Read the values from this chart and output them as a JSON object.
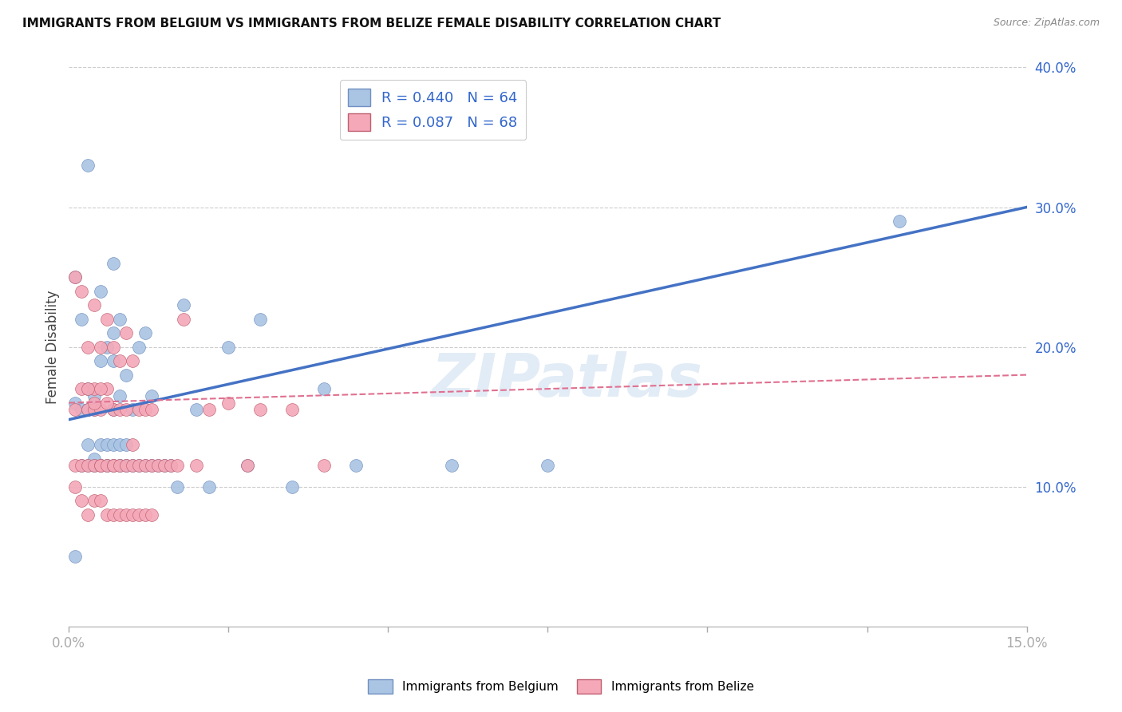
{
  "title": "IMMIGRANTS FROM BELGIUM VS IMMIGRANTS FROM BELIZE FEMALE DISABILITY CORRELATION CHART",
  "source": "Source: ZipAtlas.com",
  "ylabel": "Female Disability",
  "xlim": [
    0.0,
    0.15
  ],
  "ylim": [
    0.0,
    0.4
  ],
  "belgium_color": "#aac4e4",
  "belize_color": "#f4a8b8",
  "belgium_R": 0.44,
  "belgium_N": 64,
  "belize_R": 0.087,
  "belize_N": 68,
  "belgium_line_color": "#4472c4",
  "belize_line_color": "#e07090",
  "watermark": "ZIPatlas",
  "background_color": "#ffffff",
  "grid_color": "#cccccc",
  "belgium_x": [
    0.001,
    0.001,
    0.002,
    0.002,
    0.002,
    0.003,
    0.003,
    0.003,
    0.003,
    0.004,
    0.004,
    0.004,
    0.004,
    0.004,
    0.005,
    0.005,
    0.005,
    0.005,
    0.006,
    0.006,
    0.006,
    0.006,
    0.007,
    0.007,
    0.007,
    0.007,
    0.007,
    0.008,
    0.008,
    0.008,
    0.008,
    0.008,
    0.009,
    0.009,
    0.009,
    0.01,
    0.01,
    0.011,
    0.011,
    0.012,
    0.012,
    0.013,
    0.013,
    0.014,
    0.015,
    0.016,
    0.017,
    0.018,
    0.02,
    0.022,
    0.025,
    0.028,
    0.03,
    0.035,
    0.04,
    0.045,
    0.06,
    0.075,
    0.13,
    0.003,
    0.005,
    0.007,
    0.009,
    0.001
  ],
  "belgium_y": [
    0.16,
    0.25,
    0.115,
    0.155,
    0.22,
    0.115,
    0.13,
    0.155,
    0.17,
    0.115,
    0.12,
    0.115,
    0.155,
    0.165,
    0.115,
    0.115,
    0.13,
    0.19,
    0.115,
    0.115,
    0.13,
    0.2,
    0.115,
    0.13,
    0.155,
    0.19,
    0.21,
    0.115,
    0.115,
    0.13,
    0.165,
    0.22,
    0.115,
    0.13,
    0.18,
    0.115,
    0.155,
    0.115,
    0.2,
    0.115,
    0.21,
    0.115,
    0.165,
    0.115,
    0.115,
    0.115,
    0.1,
    0.23,
    0.155,
    0.1,
    0.2,
    0.115,
    0.22,
    0.1,
    0.17,
    0.115,
    0.115,
    0.115,
    0.29,
    0.33,
    0.24,
    0.26,
    0.115,
    0.05
  ],
  "belize_x": [
    0.001,
    0.001,
    0.001,
    0.002,
    0.002,
    0.002,
    0.003,
    0.003,
    0.003,
    0.004,
    0.004,
    0.004,
    0.004,
    0.005,
    0.005,
    0.005,
    0.005,
    0.006,
    0.006,
    0.006,
    0.007,
    0.007,
    0.007,
    0.007,
    0.008,
    0.008,
    0.008,
    0.009,
    0.009,
    0.009,
    0.01,
    0.01,
    0.01,
    0.011,
    0.011,
    0.012,
    0.012,
    0.013,
    0.013,
    0.014,
    0.015,
    0.016,
    0.017,
    0.018,
    0.02,
    0.022,
    0.025,
    0.028,
    0.03,
    0.035,
    0.04,
    0.001,
    0.002,
    0.003,
    0.004,
    0.005,
    0.006,
    0.007,
    0.008,
    0.009,
    0.01,
    0.011,
    0.012,
    0.013,
    0.003,
    0.004,
    0.005,
    0.006
  ],
  "belize_y": [
    0.115,
    0.155,
    0.25,
    0.115,
    0.17,
    0.24,
    0.115,
    0.155,
    0.2,
    0.115,
    0.155,
    0.17,
    0.23,
    0.115,
    0.115,
    0.155,
    0.2,
    0.115,
    0.17,
    0.22,
    0.115,
    0.115,
    0.155,
    0.2,
    0.115,
    0.155,
    0.19,
    0.115,
    0.155,
    0.21,
    0.115,
    0.13,
    0.19,
    0.115,
    0.155,
    0.115,
    0.155,
    0.115,
    0.155,
    0.115,
    0.115,
    0.115,
    0.115,
    0.22,
    0.115,
    0.155,
    0.16,
    0.115,
    0.155,
    0.155,
    0.115,
    0.1,
    0.09,
    0.08,
    0.09,
    0.09,
    0.08,
    0.08,
    0.08,
    0.08,
    0.08,
    0.08,
    0.08,
    0.08,
    0.17,
    0.16,
    0.17,
    0.16
  ]
}
